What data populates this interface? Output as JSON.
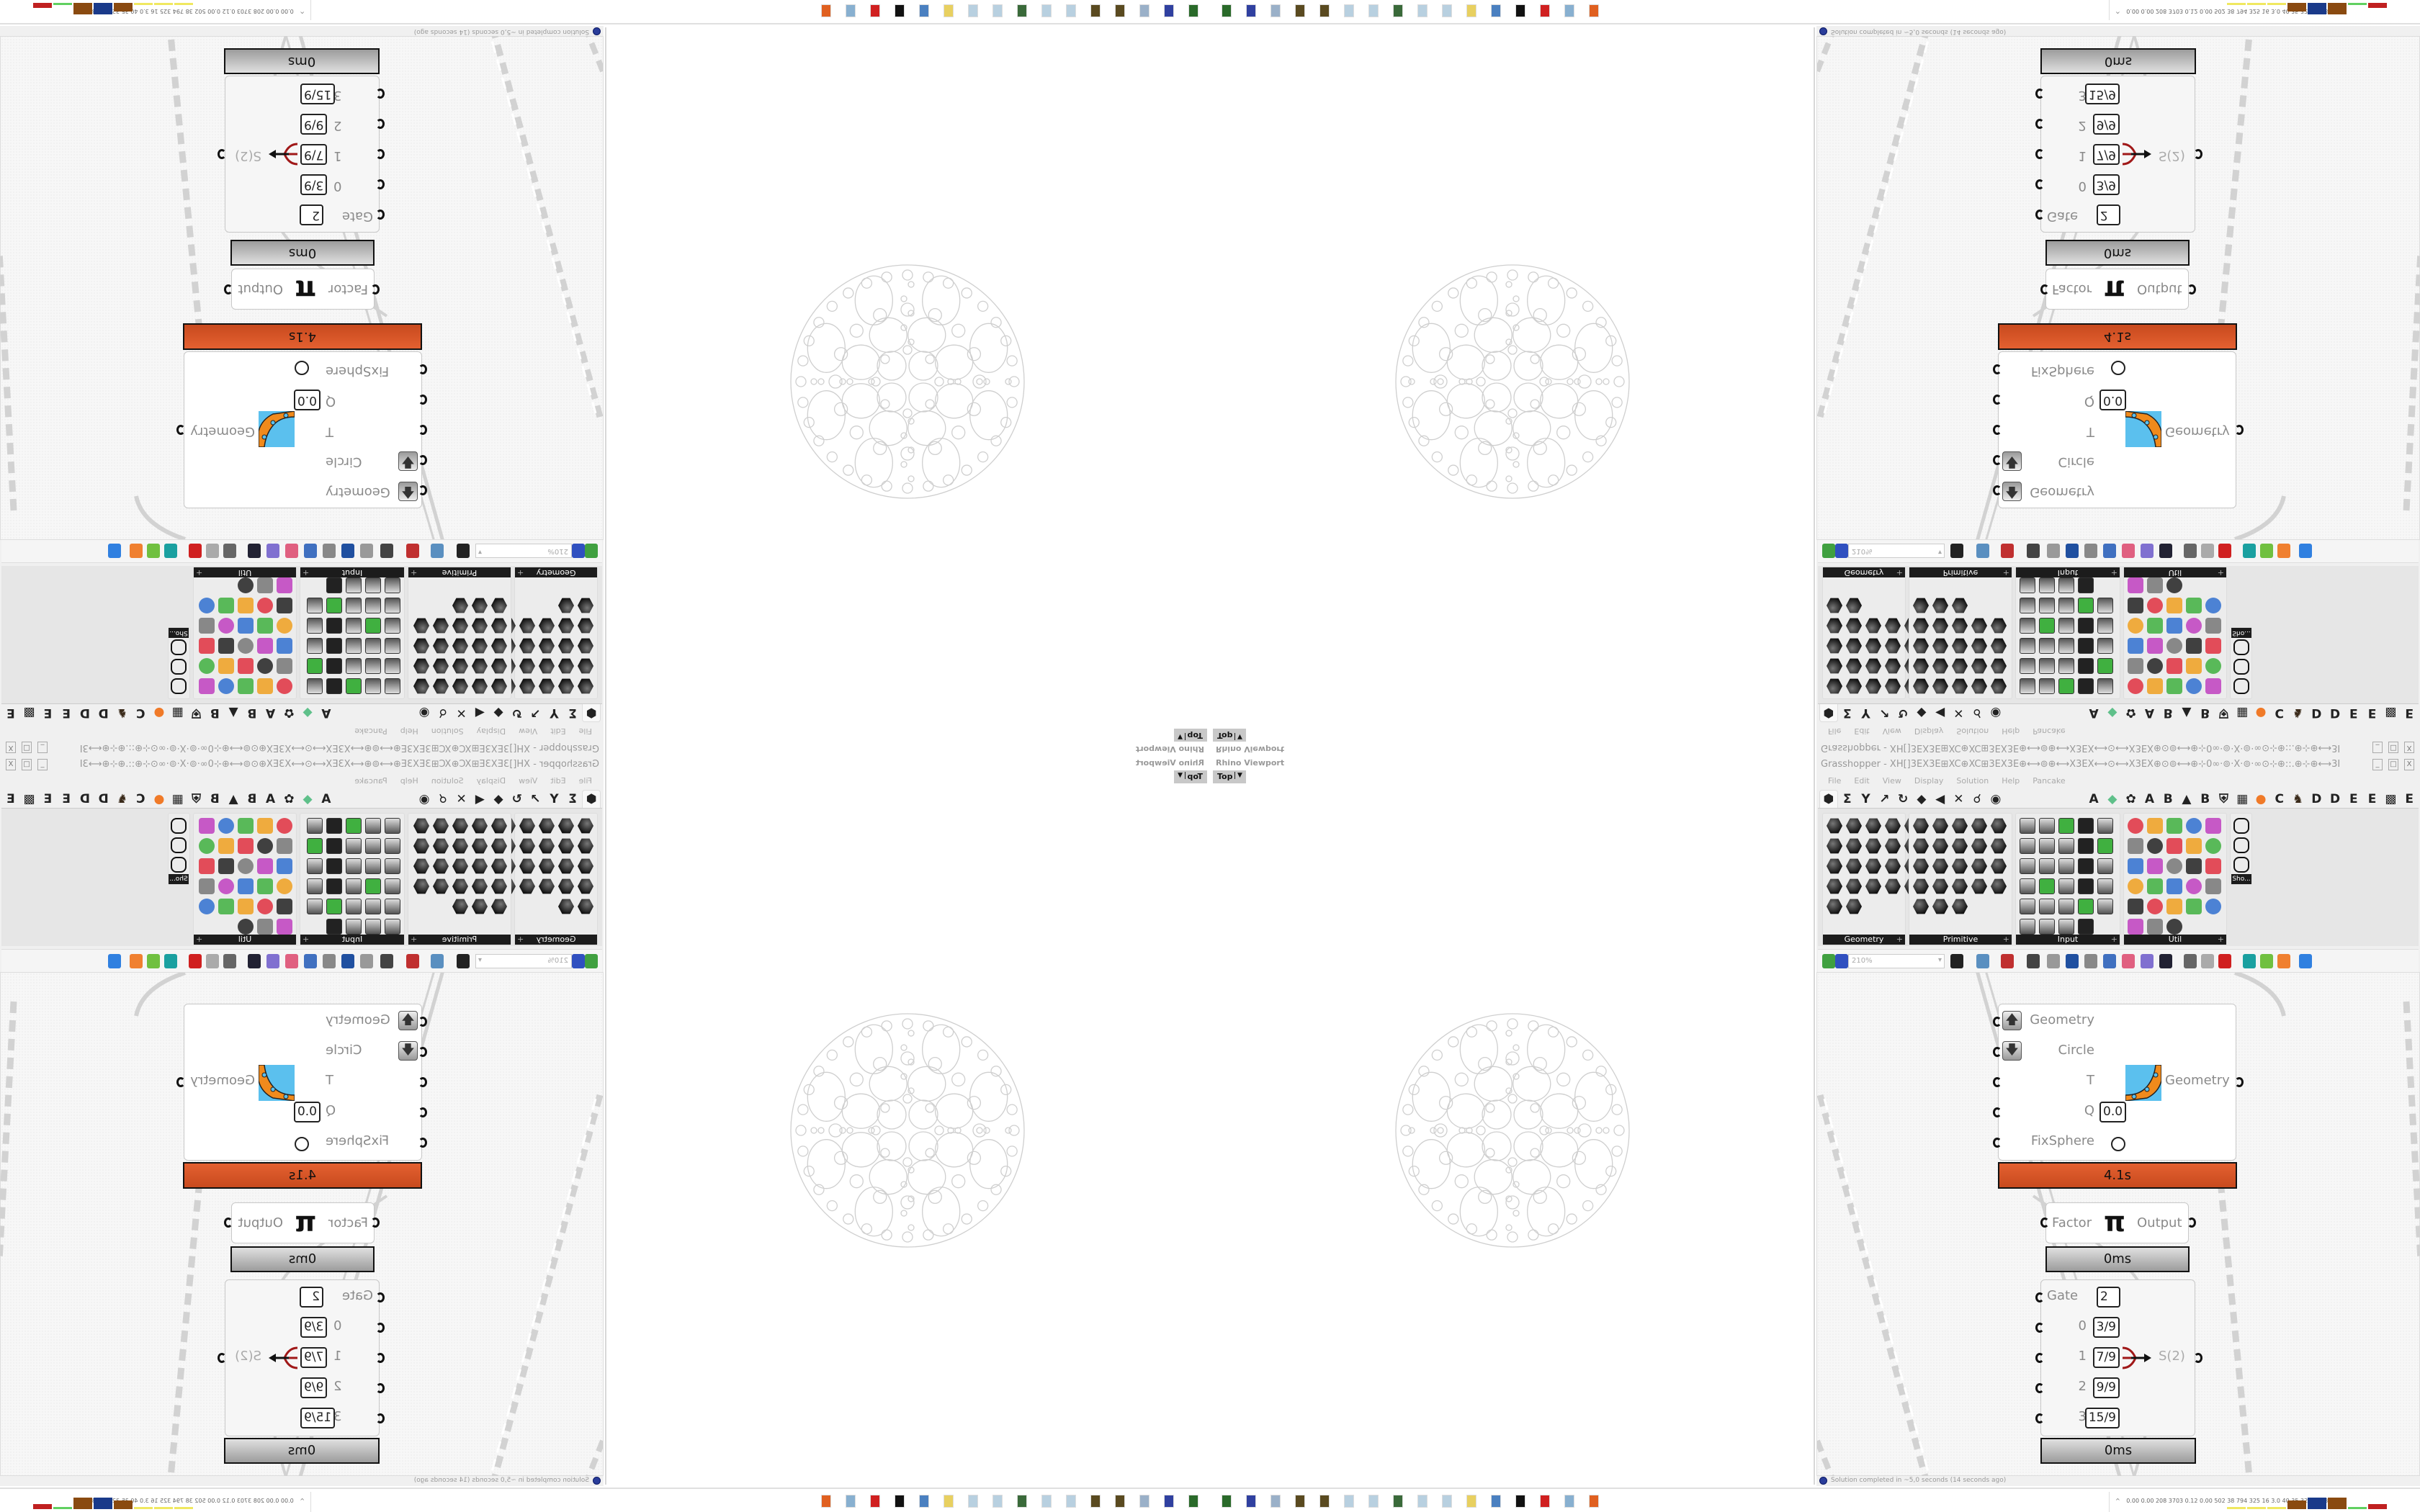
{
  "viewport": {
    "title": "Rhino Viewport",
    "view": "Top"
  },
  "grasshopper": {
    "title": "Grasshopper - XH[]3EX3E⊞XC⊕XC⊞3EX3E⊕⟷⊚⊕⟷X3EX⟷⊙⟷X3EX⊕⊙⊚⟷⊕⊹0∞·⊚·X·⊚·∞⊙⊹⊕::.⊕⊹⊕⟷3E][3E⟷⊹⊕::.⊕⊹0∞·⊚·X·⊚·∞⊙⊹⊕⟷⊚⊕⊹X3E⟷⊙⟷...",
    "window_buttons": [
      "_",
      "□",
      "X"
    ],
    "menu": [
      "File",
      "Edit",
      "View",
      "Display",
      "Solution",
      "Help",
      "Pancake"
    ],
    "tabs": [
      {
        "label": "⬢",
        "icon": "params-hexagon-icon",
        "selected": true
      },
      {
        "label": "Σ",
        "icon": "maths-sigma-icon"
      },
      {
        "label": "Y",
        "icon": "sets-icon"
      },
      {
        "label": "↗",
        "icon": "vector-icon"
      },
      {
        "label": "↻",
        "icon": "curve-icon"
      },
      {
        "label": "◆",
        "icon": "surface-icon"
      },
      {
        "label": "◀",
        "icon": "mesh-icon"
      },
      {
        "label": "✕",
        "icon": "intersect-icon"
      },
      {
        "label": "☌",
        "icon": "transform-icon"
      },
      {
        "label": "◉",
        "icon": "display-eye-icon"
      },
      {
        "label": "",
        "icon": "spacer"
      },
      {
        "label": "A",
        "icon": "letter-a-icon"
      },
      {
        "label": "◆",
        "icon": "green-crystal-icon"
      },
      {
        "label": "✿",
        "icon": "flower-icon"
      },
      {
        "label": "A",
        "icon": "letter-a-icon"
      },
      {
        "label": "B",
        "icon": "letter-b-icon"
      },
      {
        "label": "▲",
        "icon": "terrain-icon"
      },
      {
        "label": "B",
        "icon": "letter-b-icon"
      },
      {
        "label": "⛨",
        "icon": "shield-icon"
      },
      {
        "label": "▦",
        "icon": "grid-icon"
      },
      {
        "label": "●",
        "icon": "orange-circle-icon"
      },
      {
        "label": "C",
        "icon": "letter-c-icon"
      },
      {
        "label": "♞",
        "icon": "rooster-icon"
      },
      {
        "label": "D",
        "icon": "letter-d-icon"
      },
      {
        "label": "D",
        "icon": "letter-d-icon"
      },
      {
        "label": "E",
        "icon": "letter-e-icon"
      },
      {
        "label": "E",
        "icon": "letter-e-icon"
      },
      {
        "label": "▩",
        "icon": "dotted-square-icon"
      },
      {
        "label": "E",
        "icon": "letter-e-icon"
      }
    ],
    "panels": [
      {
        "label": "Geometry",
        "plus": "+"
      },
      {
        "label": "Primitive",
        "plus": "+"
      },
      {
        "label": "Input",
        "plus": "+"
      },
      {
        "label": "Util",
        "plus": "+"
      }
    ],
    "shortcut_label": "Sho...",
    "zoom": "210%",
    "components": {
      "main": {
        "inputs": [
          "Geometry",
          "Circle",
          "T",
          "Q",
          "FixSphere"
        ],
        "q_value": "0.0",
        "output": "Geometry",
        "time": "4.1s"
      },
      "pi": {
        "input": "Factor",
        "symbol": "π",
        "output": "Output",
        "time": "0ms"
      },
      "gate": {
        "gate_label": "Gate",
        "gate_value": "2",
        "inputs": [
          {
            "index": "0",
            "value": "3/9"
          },
          {
            "index": "1",
            "value": "7/9"
          },
          {
            "index": "2",
            "value": "9/9"
          },
          {
            "index": "3",
            "value": "15/9"
          }
        ],
        "output": "S(2)",
        "time": "0ms"
      }
    },
    "status": "Solution completed in ~5,0 seconds (14 seconds ago)"
  },
  "taskbar": {
    "tray_chevron": "^",
    "tray_values": "0.00 0.00 208 3703 0.12 0.00 502  38  794  325  16  3.0  40  35  3281 5082"
  },
  "colors": {
    "accent_orange": "#d4552a",
    "info_blue": "#2a3d9a"
  }
}
